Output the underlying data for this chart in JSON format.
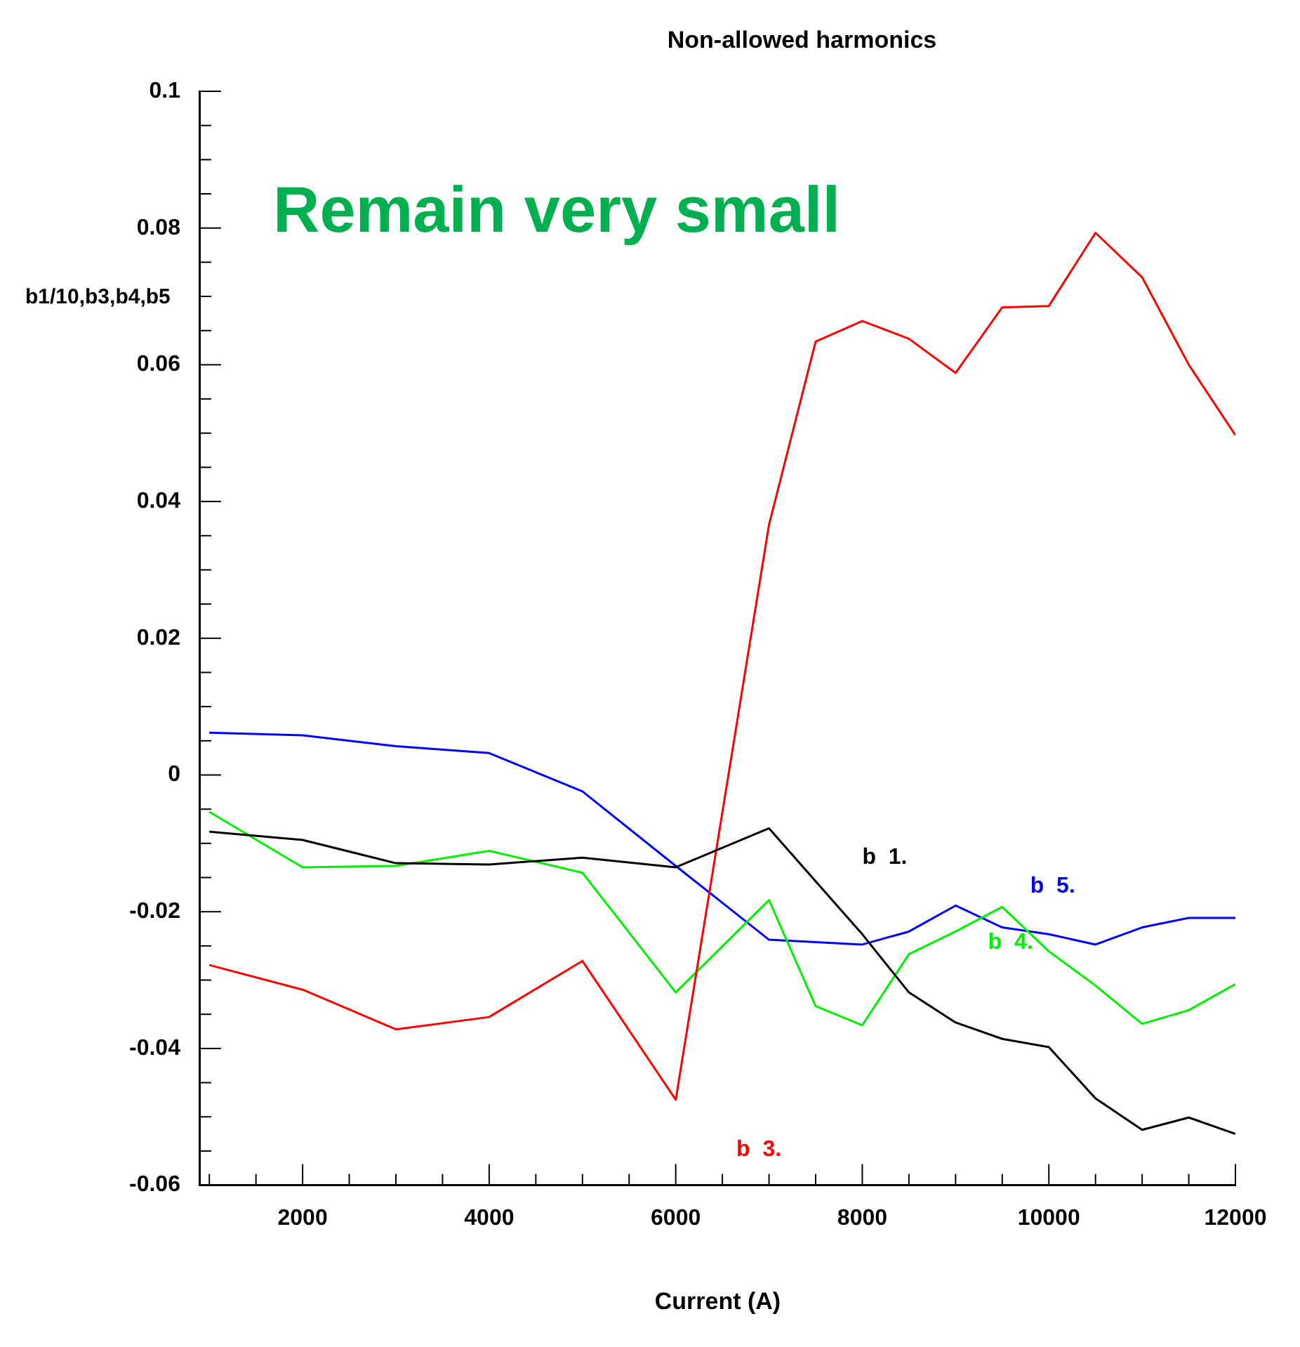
{
  "chart_data": {
    "type": "line",
    "title": "Non-allowed harmonics",
    "xlabel": "Current (A)",
    "ylabel": "b1/10,b3,b4,b5",
    "annotations": [
      "Remain very small"
    ],
    "xlim": [
      900,
      12000
    ],
    "ylim": [
      -0.06,
      0.1
    ],
    "xticks": [
      {
        "value": 1000,
        "label": null
      },
      {
        "value": 1500,
        "label": null
      },
      2000,
      {
        "value": 2500,
        "label": null
      },
      {
        "value": 3000,
        "label": null
      },
      {
        "value": 3500,
        "label": null
      },
      4000,
      {
        "value": 4500,
        "label": null
      },
      {
        "value": 5000,
        "label": null
      },
      {
        "value": 5500,
        "label": null
      },
      6000,
      {
        "value": 6500,
        "label": null
      },
      {
        "value": 7000,
        "label": null
      },
      {
        "value": 7500,
        "label": null
      },
      8000,
      {
        "value": 8500,
        "label": null
      },
      {
        "value": 9000,
        "label": null
      },
      {
        "value": 9500,
        "label": null
      },
      10000,
      {
        "value": 10500,
        "label": null
      },
      {
        "value": 11000,
        "label": null
      },
      {
        "value": 11500,
        "label": null
      },
      12000
    ],
    "yticks": [
      -0.06,
      {
        "value": -0.055,
        "label": null
      },
      {
        "value": -0.05,
        "label": null
      },
      {
        "value": -0.045,
        "label": null
      },
      -0.04,
      {
        "value": -0.035,
        "label": null
      },
      {
        "value": -0.03,
        "label": null
      },
      {
        "value": -0.025,
        "label": null
      },
      -0.02,
      {
        "value": -0.015,
        "label": null
      },
      {
        "value": -0.01,
        "label": null
      },
      {
        "value": -0.005,
        "label": null
      },
      0,
      {
        "value": 0.005,
        "label": null
      },
      {
        "value": 0.01,
        "label": null
      },
      {
        "value": 0.015,
        "label": null
      },
      0.02,
      {
        "value": 0.025,
        "label": null
      },
      {
        "value": 0.03,
        "label": null
      },
      {
        "value": 0.035,
        "label": null
      },
      0.04,
      {
        "value": 0.045,
        "label": null
      },
      {
        "value": 0.05,
        "label": null
      },
      {
        "value": 0.055,
        "label": null
      },
      0.06,
      {
        "value": 0.065,
        "label": null
      },
      {
        "value": 0.07,
        "label": null
      },
      {
        "value": 0.075,
        "label": null
      },
      0.08,
      {
        "value": 0.085,
        "label": null
      },
      {
        "value": 0.09,
        "label": null
      },
      {
        "value": 0.095,
        "label": null
      },
      0.1
    ],
    "grid": false,
    "legend": false,
    "marker": "none",
    "line_style": "solid",
    "series": [
      {
        "name": "b  1.",
        "color": "#000000",
        "x": [
          1000,
          2000,
          3000,
          4000,
          5000,
          6000,
          7000,
          8000,
          8500,
          9000,
          9500,
          10000,
          10500,
          11000,
          11500,
          12000
        ],
        "values": [
          -0.0083,
          -0.0095,
          -0.0129,
          -0.0131,
          -0.0121,
          -0.0135,
          -0.0078,
          -0.0233,
          -0.0318,
          -0.0362,
          -0.0386,
          -0.0398,
          -0.0473,
          -0.0519,
          -0.0501,
          -0.0525
        ]
      },
      {
        "name": "b  3.",
        "color": "#ff0000",
        "x": [
          1000,
          2000,
          3000,
          4000,
          5000,
          6000,
          7000,
          7500,
          8000,
          8500,
          9000,
          9500,
          10000,
          10500,
          11000,
          11500,
          12000
        ],
        "values": [
          -0.0278,
          -0.0314,
          -0.0372,
          -0.0354,
          -0.0272,
          -0.0475,
          0.0366,
          0.0634,
          0.0664,
          0.0638,
          0.0588,
          0.0684,
          0.0686,
          0.0793,
          0.0728,
          0.06,
          0.0497
        ]
      },
      {
        "name": "b  4.",
        "color": "#00ee00",
        "x": [
          1000,
          2000,
          3000,
          4000,
          5000,
          6000,
          7000,
          7500,
          8000,
          8500,
          9000,
          9500,
          10000,
          10500,
          11000,
          11500,
          12000
        ],
        "values": [
          -0.0054,
          -0.0135,
          -0.0133,
          -0.0111,
          -0.0143,
          -0.0318,
          -0.0183,
          -0.0338,
          -0.0366,
          -0.0262,
          -0.0229,
          -0.0193,
          -0.0258,
          -0.0308,
          -0.0364,
          -0.0344,
          -0.0306
        ]
      },
      {
        "name": "b  5.",
        "color": "#0000ff",
        "x": [
          1000,
          2000,
          3000,
          4000,
          5000,
          6000,
          7000,
          8000,
          8500,
          9000,
          9500,
          10000,
          10500,
          11000,
          11500,
          12000
        ],
        "values": [
          0.0062,
          0.0058,
          0.0042,
          0.0032,
          -0.0024,
          -0.0133,
          -0.0241,
          -0.0248,
          -0.0229,
          -0.0191,
          -0.0223,
          -0.0233,
          -0.0248,
          -0.0223,
          -0.0209,
          -0.0209
        ]
      }
    ]
  }
}
